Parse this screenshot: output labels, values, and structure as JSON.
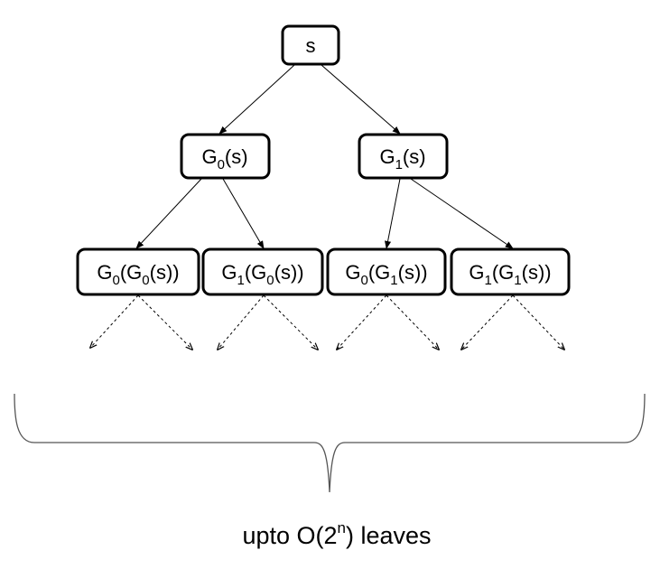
{
  "nodes": {
    "root": "s",
    "g0_s": "G0(s)",
    "g1_s": "G1(s)",
    "g0_g0_s": "G0(G0(s))",
    "g1_g0_s": "G1(G0(s))",
    "g0_g1_s": "G0(G1(s))",
    "g1_g1_s": "G1(G1(s))"
  },
  "caption": "upto O(2n) leaves"
}
